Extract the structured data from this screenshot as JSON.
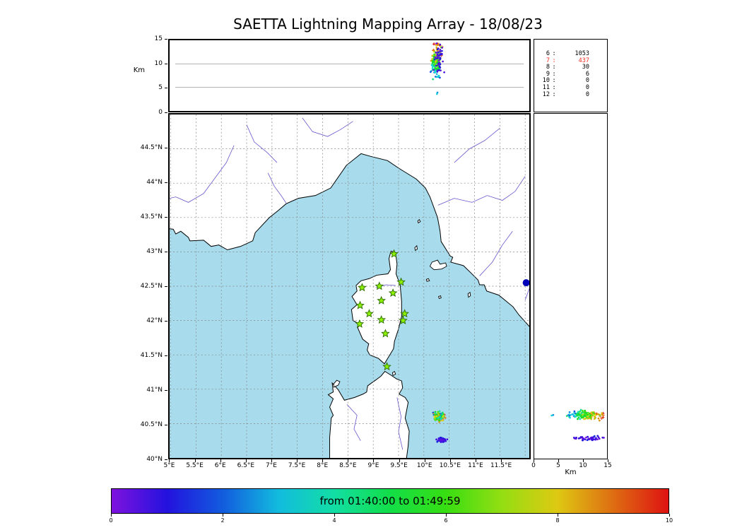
{
  "title": "SAETTA Lightning Mapping Array - 18/08/23",
  "colors": {
    "sea": "#a8dcec",
    "land": "#ffffff",
    "coast": "#000000",
    "river": "#6655cc",
    "grid": "#848484",
    "panel_grid": "#9a9a9a",
    "star_fill": "#8cf000",
    "star_edge": "#2a6a00",
    "blue_marker": "#0000bb",
    "count_red": "#f03022",
    "count_black": "#000000"
  },
  "chart_data": {
    "type": "scatter",
    "lon_alt_panel": {
      "ylabel": "Km",
      "ylim": [
        0,
        15
      ],
      "yticks": {
        "values": [
          15,
          10,
          5,
          0
        ],
        "labels": [
          "15",
          "10",
          "5",
          "0"
        ]
      },
      "grid_y": [
        5,
        10
      ]
    },
    "map_panel": {
      "xlim": [
        4.98,
        12.08
      ],
      "ylim": [
        40,
        45
      ],
      "xticks": {
        "values": [
          5,
          5.5,
          6,
          6.5,
          7,
          7.5,
          8,
          8.5,
          9,
          9.5,
          10,
          10.5,
          11,
          11.5
        ],
        "labels": [
          "5°E",
          "5.5°E",
          "6°E",
          "6.5°E",
          "7°E",
          "7.5°E",
          "8°E",
          "8.5°E",
          "9°E",
          "9.5°E",
          "10°E",
          "10.5°E",
          "11°E",
          "11.5°E"
        ]
      },
      "yticks": {
        "values": [
          40,
          40.5,
          41,
          41.5,
          42,
          42.5,
          43,
          43.5,
          44,
          44.5
        ],
        "labels": [
          "40°N",
          "40.5°N",
          "41°N",
          "41.5°N",
          "42°N",
          "42.5°N",
          "43°N",
          "43.5°N",
          "44°N",
          "44.5°N"
        ]
      },
      "grid_lon": [
        5,
        5.5,
        6,
        6.5,
        7,
        7.5,
        8,
        8.5,
        9,
        9.5,
        10,
        10.5,
        11,
        11.5,
        12
      ],
      "grid_lat": [
        40.5,
        41,
        41.5,
        42,
        42.5,
        43,
        43.5,
        44,
        44.5
      ],
      "stations": [
        [
          9.41,
          42.97
        ],
        [
          8.78,
          42.48
        ],
        [
          9.12,
          42.5
        ],
        [
          9.39,
          42.4
        ],
        [
          9.55,
          42.56
        ],
        [
          8.74,
          42.22
        ],
        [
          9.16,
          42.29
        ],
        [
          8.92,
          42.1
        ],
        [
          9.62,
          42.1
        ],
        [
          8.73,
          41.95
        ],
        [
          9.16,
          42.01
        ],
        [
          9.59,
          42.0
        ],
        [
          9.24,
          41.81
        ],
        [
          9.27,
          41.33
        ]
      ],
      "blue_marker": {
        "lon": 12.02,
        "lat": 42.55
      },
      "coastlines": {
        "mainland": [
          [
            4.8,
            43.35
          ],
          [
            5.05,
            43.33
          ],
          [
            5.1,
            43.26
          ],
          [
            5.2,
            43.3
          ],
          [
            5.35,
            43.21
          ],
          [
            5.38,
            43.16
          ],
          [
            5.65,
            43.17
          ],
          [
            5.8,
            43.08
          ],
          [
            5.95,
            43.1
          ],
          [
            6.12,
            43.03
          ],
          [
            6.38,
            43.08
          ],
          [
            6.62,
            43.16
          ],
          [
            6.67,
            43.28
          ],
          [
            6.95,
            43.5
          ],
          [
            7.12,
            43.6
          ],
          [
            7.28,
            43.7
          ],
          [
            7.52,
            43.78
          ],
          [
            7.86,
            43.82
          ],
          [
            8.16,
            43.93
          ],
          [
            8.47,
            44.26
          ],
          [
            8.76,
            44.43
          ],
          [
            8.95,
            44.39
          ],
          [
            9.28,
            44.33
          ],
          [
            9.52,
            44.21
          ],
          [
            9.85,
            44.06
          ],
          [
            10.03,
            43.93
          ],
          [
            10.12,
            43.8
          ],
          [
            10.27,
            43.5
          ],
          [
            10.32,
            43.3
          ],
          [
            10.34,
            43.15
          ],
          [
            10.52,
            42.94
          ],
          [
            10.57,
            42.92
          ],
          [
            10.53,
            42.85
          ],
          [
            10.78,
            42.8
          ],
          [
            10.92,
            42.7
          ],
          [
            11.07,
            42.59
          ],
          [
            11.1,
            42.52
          ],
          [
            11.19,
            42.52
          ],
          [
            11.24,
            42.43
          ],
          [
            11.48,
            42.37
          ],
          [
            11.76,
            42.2
          ],
          [
            11.88,
            42.08
          ],
          [
            12.1,
            41.9
          ],
          [
            12.3,
            41.75
          ],
          [
            12.3,
            45.2
          ],
          [
            4.8,
            45.2
          ]
        ],
        "corsica": [
          [
            9.35,
            43.01
          ],
          [
            9.44,
            42.99
          ],
          [
            9.47,
            42.82
          ],
          [
            9.45,
            42.68
          ],
          [
            9.53,
            42.52
          ],
          [
            9.56,
            42.28
          ],
          [
            9.56,
            42.06
          ],
          [
            9.5,
            41.88
          ],
          [
            9.42,
            41.7
          ],
          [
            9.4,
            41.59
          ],
          [
            9.22,
            41.37
          ],
          [
            9.1,
            41.45
          ],
          [
            8.93,
            41.5
          ],
          [
            8.88,
            41.57
          ],
          [
            8.91,
            41.66
          ],
          [
            8.79,
            41.73
          ],
          [
            8.69,
            41.9
          ],
          [
            8.75,
            41.94
          ],
          [
            8.6,
            42.0
          ],
          [
            8.57,
            42.16
          ],
          [
            8.68,
            42.23
          ],
          [
            8.58,
            42.35
          ],
          [
            8.68,
            42.43
          ],
          [
            8.66,
            42.51
          ],
          [
            8.76,
            42.58
          ],
          [
            8.92,
            42.61
          ],
          [
            9.07,
            42.66
          ],
          [
            9.29,
            42.68
          ],
          [
            9.34,
            42.74
          ],
          [
            9.31,
            42.9
          ]
        ],
        "sardinia": [
          [
            8.14,
            39.9
          ],
          [
            8.14,
            40.3
          ],
          [
            8.17,
            40.58
          ],
          [
            8.21,
            40.62
          ],
          [
            8.14,
            40.74
          ],
          [
            8.21,
            40.86
          ],
          [
            8.11,
            40.92
          ],
          [
            8.21,
            40.96
          ],
          [
            8.19,
            41.09
          ],
          [
            8.31,
            40.99
          ],
          [
            8.43,
            40.84
          ],
          [
            8.63,
            40.88
          ],
          [
            8.8,
            40.93
          ],
          [
            8.87,
            40.96
          ],
          [
            8.89,
            41.05
          ],
          [
            9.06,
            41.14
          ],
          [
            9.15,
            41.19
          ],
          [
            9.23,
            41.26
          ],
          [
            9.36,
            41.2
          ],
          [
            9.46,
            41.15
          ],
          [
            9.56,
            41.12
          ],
          [
            9.58,
            41.02
          ],
          [
            9.51,
            40.93
          ],
          [
            9.63,
            40.88
          ],
          [
            9.69,
            40.81
          ],
          [
            9.63,
            40.58
          ],
          [
            9.71,
            40.39
          ],
          [
            9.69,
            40.18
          ],
          [
            9.64,
            39.9
          ]
        ],
        "islands": [
          [
            [
              8.22,
              41.03
            ],
            [
              8.31,
              41.06
            ],
            [
              8.34,
              41.11
            ],
            [
              8.28,
              41.13
            ],
            [
              8.22,
              41.08
            ]
          ],
          [
            [
              10.12,
              42.79
            ],
            [
              10.2,
              42.74
            ],
            [
              10.35,
              42.75
            ],
            [
              10.45,
              42.79
            ],
            [
              10.43,
              42.84
            ],
            [
              10.32,
              42.82
            ],
            [
              10.27,
              42.88
            ],
            [
              10.16,
              42.85
            ]
          ],
          [
            [
              9.83,
              43.02
            ],
            [
              9.87,
              43.04
            ],
            [
              9.86,
              43.09
            ],
            [
              9.82,
              43.06
            ]
          ],
          [
            [
              9.89,
              43.42
            ],
            [
              9.93,
              43.44
            ],
            [
              9.91,
              43.47
            ],
            [
              9.88,
              43.45
            ]
          ],
          [
            [
              10.06,
              42.57
            ],
            [
              10.11,
              42.58
            ],
            [
              10.09,
              42.61
            ],
            [
              10.05,
              42.6
            ]
          ],
          [
            [
              10.3,
              42.32
            ],
            [
              10.34,
              42.33
            ],
            [
              10.33,
              42.36
            ],
            [
              10.29,
              42.35
            ]
          ],
          [
            [
              10.88,
              42.34
            ],
            [
              10.92,
              42.36
            ],
            [
              10.91,
              42.41
            ],
            [
              10.87,
              42.39
            ]
          ],
          [
            [
              9.39,
              41.2
            ],
            [
              9.44,
              41.22
            ],
            [
              9.42,
              41.26
            ],
            [
              9.38,
              41.24
            ]
          ]
        ]
      },
      "rivers": [
        [
          [
            4.8,
            43.75
          ],
          [
            5.1,
            43.8
          ],
          [
            5.35,
            43.72
          ],
          [
            5.65,
            43.85
          ],
          [
            5.9,
            44.1
          ],
          [
            6.1,
            44.3
          ],
          [
            6.25,
            44.55
          ]
        ],
        [
          [
            4.85,
            44.95
          ],
          [
            4.95,
            44.6
          ],
          [
            4.85,
            44.25
          ],
          [
            4.95,
            43.95
          ],
          [
            4.85,
            43.65
          ]
        ],
        [
          [
            6.92,
            44.15
          ],
          [
            7.05,
            43.95
          ],
          [
            7.18,
            43.82
          ],
          [
            7.28,
            43.71
          ]
        ],
        [
          [
            6.5,
            44.85
          ],
          [
            6.65,
            44.6
          ],
          [
            6.9,
            44.45
          ],
          [
            7.1,
            44.3
          ]
        ],
        [
          [
            7.6,
            44.95
          ],
          [
            7.8,
            44.75
          ],
          [
            8.1,
            44.68
          ],
          [
            8.35,
            44.78
          ],
          [
            8.6,
            44.9
          ]
        ],
        [
          [
            10.28,
            43.68
          ],
          [
            10.6,
            43.78
          ],
          [
            10.95,
            43.72
          ],
          [
            11.25,
            43.82
          ],
          [
            11.55,
            43.75
          ],
          [
            11.8,
            43.88
          ],
          [
            12.0,
            44.1
          ]
        ],
        [
          [
            10.6,
            44.3
          ],
          [
            10.9,
            44.5
          ],
          [
            11.2,
            44.62
          ],
          [
            11.5,
            44.8
          ]
        ],
        [
          [
            11.1,
            42.65
          ],
          [
            11.35,
            42.85
          ],
          [
            11.55,
            43.1
          ],
          [
            11.75,
            43.3
          ]
        ],
        [
          [
            12.0,
            42.3
          ],
          [
            12.15,
            42.6
          ]
        ],
        [
          [
            9.47,
            40.88
          ],
          [
            9.55,
            40.6
          ],
          [
            9.5,
            40.38
          ],
          [
            9.58,
            40.12
          ]
        ],
        [
          [
            8.48,
            40.78
          ],
          [
            8.68,
            40.62
          ],
          [
            8.62,
            40.42
          ],
          [
            8.75,
            40.25
          ]
        ],
        [
          [
            9.05,
            42.48
          ],
          [
            9.25,
            42.52
          ],
          [
            9.44,
            42.51
          ]
        ]
      ]
    },
    "lat_alt_panel": {
      "xlabel": "Km",
      "xlim": [
        0,
        15
      ],
      "xticks": {
        "values": [
          0,
          5,
          10,
          15
        ],
        "labels": [
          "0",
          "5",
          "10",
          "15"
        ]
      }
    },
    "station_counts": {
      "rows": [
        {
          "station": "6",
          "count": "1053",
          "color": "#000000"
        },
        {
          "station": "7",
          "count": "437",
          "color": "#f03022"
        },
        {
          "station": "8",
          "count": "30",
          "color": "#000000"
        },
        {
          "station": "9",
          "count": "6",
          "color": "#000000"
        },
        {
          "station": "10",
          "count": "0",
          "color": "#000000"
        },
        {
          "station": "11",
          "count": "0",
          "color": "#000000"
        },
        {
          "station": "12",
          "count": "0",
          "color": "#000000"
        }
      ]
    },
    "colorbar": {
      "label": "from 01:40:00 to 01:49:59",
      "range": [
        0,
        10
      ],
      "ticks": {
        "values": [
          0,
          2,
          4,
          6,
          8,
          10
        ],
        "labels": [
          "0",
          "2",
          "4",
          "6",
          "8",
          "10"
        ]
      }
    },
    "events": {
      "clusters": [
        {
          "name": "storm-core",
          "count": 150,
          "lon": 10.3,
          "lon_sd": 0.05,
          "lat": 40.605,
          "lat_sd": 0.03,
          "alt": 10.8,
          "alt_sd": 1.7,
          "alt_min": 6.4,
          "alt_max": 14.2,
          "t_from_alt": true,
          "t_base": 2.0,
          "t_span": 7.5,
          "t_noise": 1.1
        },
        {
          "name": "early-blue",
          "count": 48,
          "lon": 10.36,
          "lon_sd": 0.045,
          "lat": 40.255,
          "lat_sd": 0.02,
          "alt": 11.2,
          "alt_sd": 1.4,
          "alt_min": 8.2,
          "alt_max": 14.4,
          "t": 0.7,
          "t_sd": 0.35
        },
        {
          "name": "low-pair",
          "count": 2,
          "lon": 10.33,
          "lon_sd": 0.01,
          "lat": 40.6,
          "lat_sd": 0.01,
          "alt": 3.9,
          "alt_sd": 0.25,
          "alt_min": 3.4,
          "alt_max": 4.3,
          "t": 3.2,
          "t_sd": 0.3
        }
      ]
    }
  }
}
